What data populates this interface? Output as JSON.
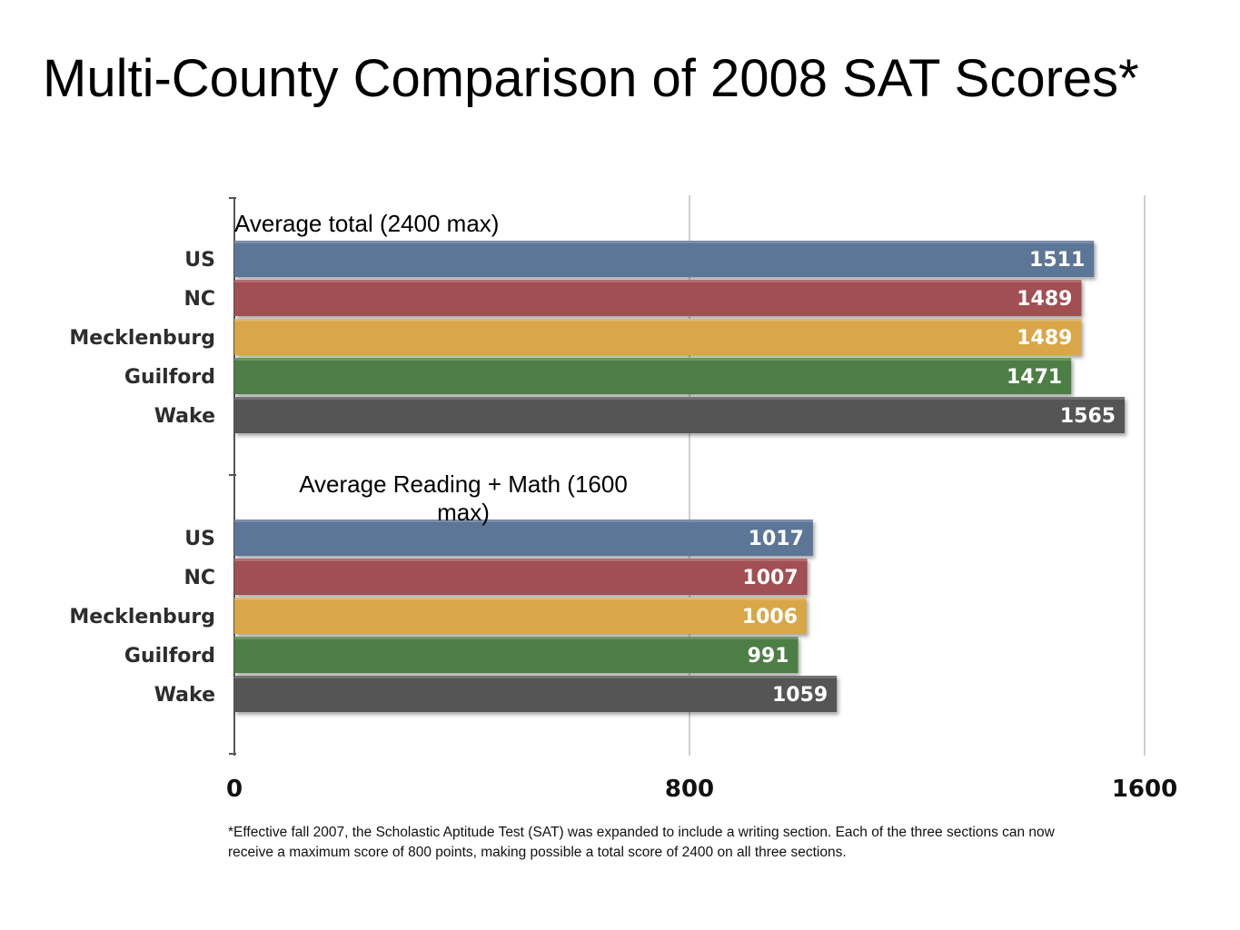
{
  "title": "Multi-County Comparison of 2008 SAT Scores*",
  "footnote": "*Effective fall 2007, the Scholastic Aptitude Test (SAT) was expanded to include a writing section.  Each of the three sections can now receive a maximum score of 800 points, making possible a total score of 2400 on all three sections.",
  "chart_data": {
    "type": "bar",
    "orientation": "horizontal",
    "xlim": [
      0,
      1600
    ],
    "x_ticks": [
      "0",
      "800",
      "1600"
    ],
    "grid": true,
    "colors": [
      "#5b7698",
      "#a14f52",
      "#d9a746",
      "#4e7e45",
      "#555555"
    ],
    "panels": [
      {
        "subtitle": "Average total (2400 max)",
        "categories": [
          "US",
          "NC",
          "Mecklenburg",
          "Guilford",
          "Wake"
        ],
        "values": [
          1511,
          1489,
          1489,
          1471,
          1565
        ]
      },
      {
        "subtitle": "Average Reading + Math (1600 max)",
        "categories": [
          "US",
          "NC",
          "Mecklenburg",
          "Guilford",
          "Wake"
        ],
        "values": [
          1017,
          1007,
          1006,
          991,
          1059
        ]
      }
    ]
  }
}
